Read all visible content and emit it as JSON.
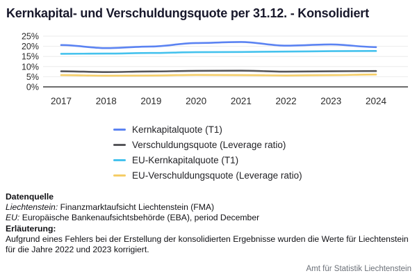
{
  "title": "Kernkapital- und Verschuldungsquote per 31.12. - Konsolidiert",
  "chart_data": {
    "type": "line",
    "categories": [
      "2017",
      "2018",
      "2019",
      "2020",
      "2021",
      "2022",
      "2023",
      "2024"
    ],
    "series": [
      {
        "name": "Kernkapitalquote (T1)",
        "color": "#5B83F2",
        "values": [
          20.6,
          19.1,
          19.9,
          21.6,
          22.1,
          20.3,
          20.9,
          19.6
        ]
      },
      {
        "name": "Verschuldungsquote (Leverage ratio)",
        "color": "#56565A",
        "values": [
          7.7,
          7.3,
          7.6,
          7.9,
          8.0,
          7.5,
          7.7,
          7.8
        ]
      },
      {
        "name": "EU-Kernkapitalquote (T1)",
        "color": "#45C2ED",
        "values": [
          16.3,
          16.4,
          16.7,
          17.1,
          17.2,
          17.4,
          17.6,
          17.7
        ]
      },
      {
        "name": "EU-Verschuldungsquote (Leverage ratio)",
        "color": "#F5CD66",
        "values": [
          5.8,
          5.5,
          5.6,
          5.9,
          5.8,
          5.6,
          5.8,
          6.1
        ]
      }
    ],
    "title": "Kernkapital- und Verschuldungsquote per 31.12. - Konsolidiert",
    "xlabel": "",
    "ylabel": "",
    "ylim": [
      0,
      25
    ],
    "ytick_step": 5,
    "ytick_suffix": "%",
    "grid": true,
    "legend_position": "bottom",
    "axis_color": "#3b3b3b",
    "grid_color": "#ebebeb",
    "tick_label_color": "#2b2b2b"
  },
  "footer": {
    "datenquelle_heading": "Datenquelle",
    "li_label": "Liechtenstein:",
    "li_text": " Finanzmarktaufsicht Liechtenstein (FMA)",
    "eu_label": "EU:",
    "eu_text": " Europäische Bankenaufsichtsbehörde (EBA), period December",
    "erlaeuterung_heading": "Erläuterung:",
    "note": "Aufgrund eines Fehlers bei der Erstellung der konsolidierten Ergebnisse wurden die Werte für Liechtenstein für die Jahre 2022 und 2023 korrigiert.",
    "source": "Amt für Statistik Liechtenstein"
  }
}
